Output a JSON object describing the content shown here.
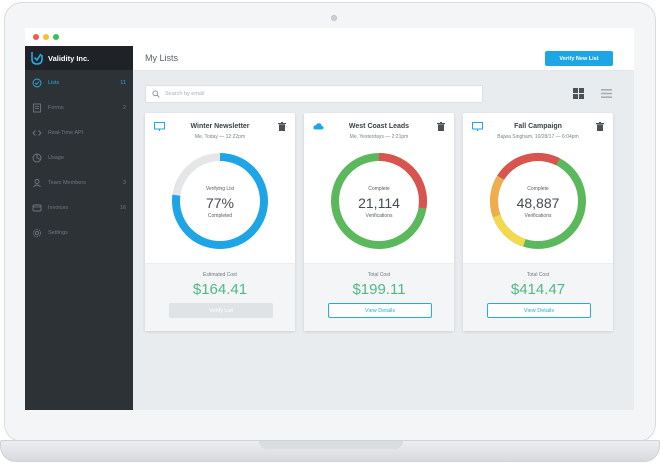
{
  "window": {
    "controls": [
      "close",
      "minimize",
      "maximize"
    ]
  },
  "brand": {
    "name": "Validity Inc.",
    "logo_icon": "validity-logo-icon"
  },
  "sidebar": {
    "items": [
      {
        "label": "Lists",
        "count": "11",
        "icon": "check-circle-icon",
        "active": true
      },
      {
        "label": "Forms",
        "count": "2",
        "icon": "form-icon",
        "active": false
      },
      {
        "label": "Real-Time API",
        "count": "",
        "icon": "code-icon",
        "active": false
      },
      {
        "label": "Usage",
        "count": "",
        "icon": "usage-chart-icon",
        "active": false
      },
      {
        "label": "Team Members",
        "count": "3",
        "icon": "team-icon",
        "active": false
      },
      {
        "label": "Invoices",
        "count": "16",
        "icon": "invoice-icon",
        "active": false
      },
      {
        "label": "Settings",
        "count": "",
        "icon": "gear-icon",
        "active": false
      }
    ]
  },
  "header": {
    "title": "My Lists",
    "verify_button": "Verify New List"
  },
  "search": {
    "placeholder": "Search by email"
  },
  "view_toggle": {
    "grid_icon": "grid-view-icon",
    "list_icon": "list-view-icon"
  },
  "colors": {
    "accent": "#1ea5e6",
    "cost": "#52b788",
    "sidebar": "#2d3237",
    "red": "#d9534f",
    "green": "#5cb85c",
    "orange": "#f0ad4e",
    "yellow": "#f2d94e",
    "gray": "#e4e6e8"
  },
  "cards": [
    {
      "title": "Winter Newsletter",
      "subtitle": "Me, Today — 12:22pm",
      "source_icon": "monitor-icon",
      "ring_top": "Verifying List",
      "ring_value": "77%",
      "ring_bottom": "Completed",
      "progress": 0.77,
      "cost_label": "Estimated Cost",
      "cost_value": "$164.41",
      "button": "Verify List",
      "button_disabled": true
    },
    {
      "title": "West Coast Leads",
      "subtitle": "Me, Yesterdays — 2:21pm",
      "source_icon": "salesforce-cloud-icon",
      "ring_top": "Complete",
      "ring_value": "21,114",
      "ring_bottom": "Verifications",
      "cost_label": "Total Cost",
      "cost_value": "$199.11",
      "button": "View Details",
      "button_disabled": false
    },
    {
      "title": "Fall Campaign",
      "subtitle": "Bajwa Singham, 10/28/17 — 6:04pm",
      "source_icon": "monitor-icon",
      "ring_top": "Complete",
      "ring_value": "48,887",
      "ring_bottom": "Verifications",
      "cost_label": "Total Cost",
      "cost_value": "$414.47",
      "button": "View Details",
      "button_disabled": false
    }
  ]
}
